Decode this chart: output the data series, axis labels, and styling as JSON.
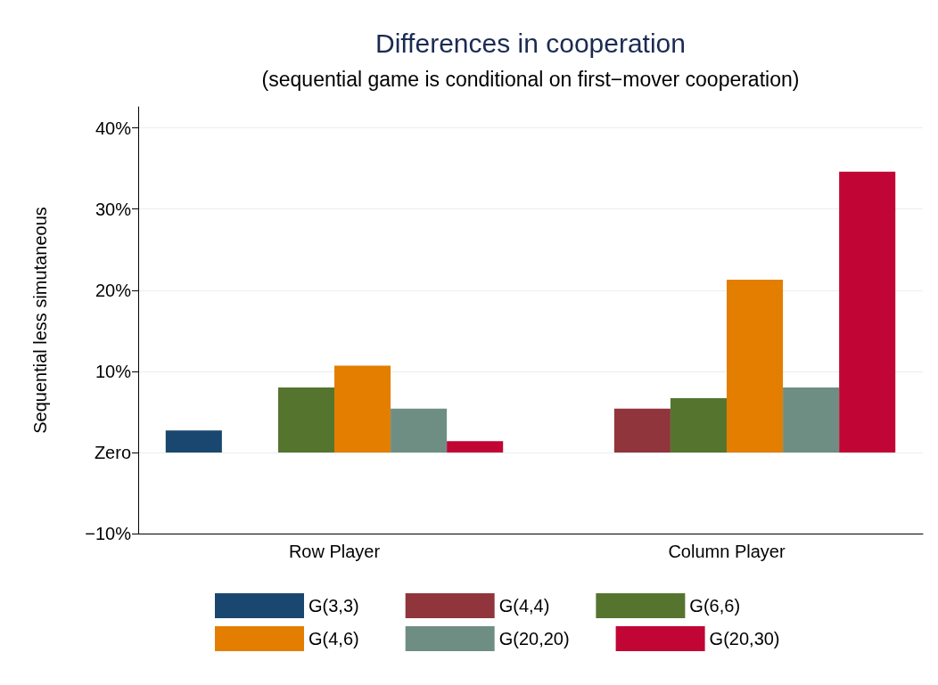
{
  "chart_data": {
    "type": "bar",
    "title": "Differences in cooperation",
    "subtitle": "(sequential game is conditional on first−mover cooperation)",
    "ylabel": "Sequential less simutaneous",
    "categories": [
      "Row Player",
      "Column Player"
    ],
    "series": [
      {
        "name": "G(3,3)",
        "color": "#1a476f",
        "values": [
          2.7,
          null
        ]
      },
      {
        "name": "G(4,4)",
        "color": "#90353b",
        "values": [
          null,
          5.4
        ]
      },
      {
        "name": "G(6,6)",
        "color": "#55752f",
        "values": [
          8.0,
          6.7
        ]
      },
      {
        "name": "G(4,6)",
        "color": "#e37e00",
        "values": [
          10.7,
          21.3
        ]
      },
      {
        "name": "G(20,20)",
        "color": "#6e8e84",
        "values": [
          5.4,
          8.0
        ]
      },
      {
        "name": "G(20,30)",
        "color": "#c10534",
        "values": [
          1.4,
          34.6
        ]
      }
    ],
    "ylim": [
      -10,
      42.6
    ],
    "yticks": [
      {
        "value": -10,
        "label": "−10%"
      },
      {
        "value": 0,
        "label": "Zero"
      },
      {
        "value": 10,
        "label": "10%"
      },
      {
        "value": 20,
        "label": "20%"
      },
      {
        "value": 30,
        "label": "30%"
      },
      {
        "value": 40,
        "label": "40%"
      }
    ],
    "grid": "y",
    "legend": "bottom"
  }
}
